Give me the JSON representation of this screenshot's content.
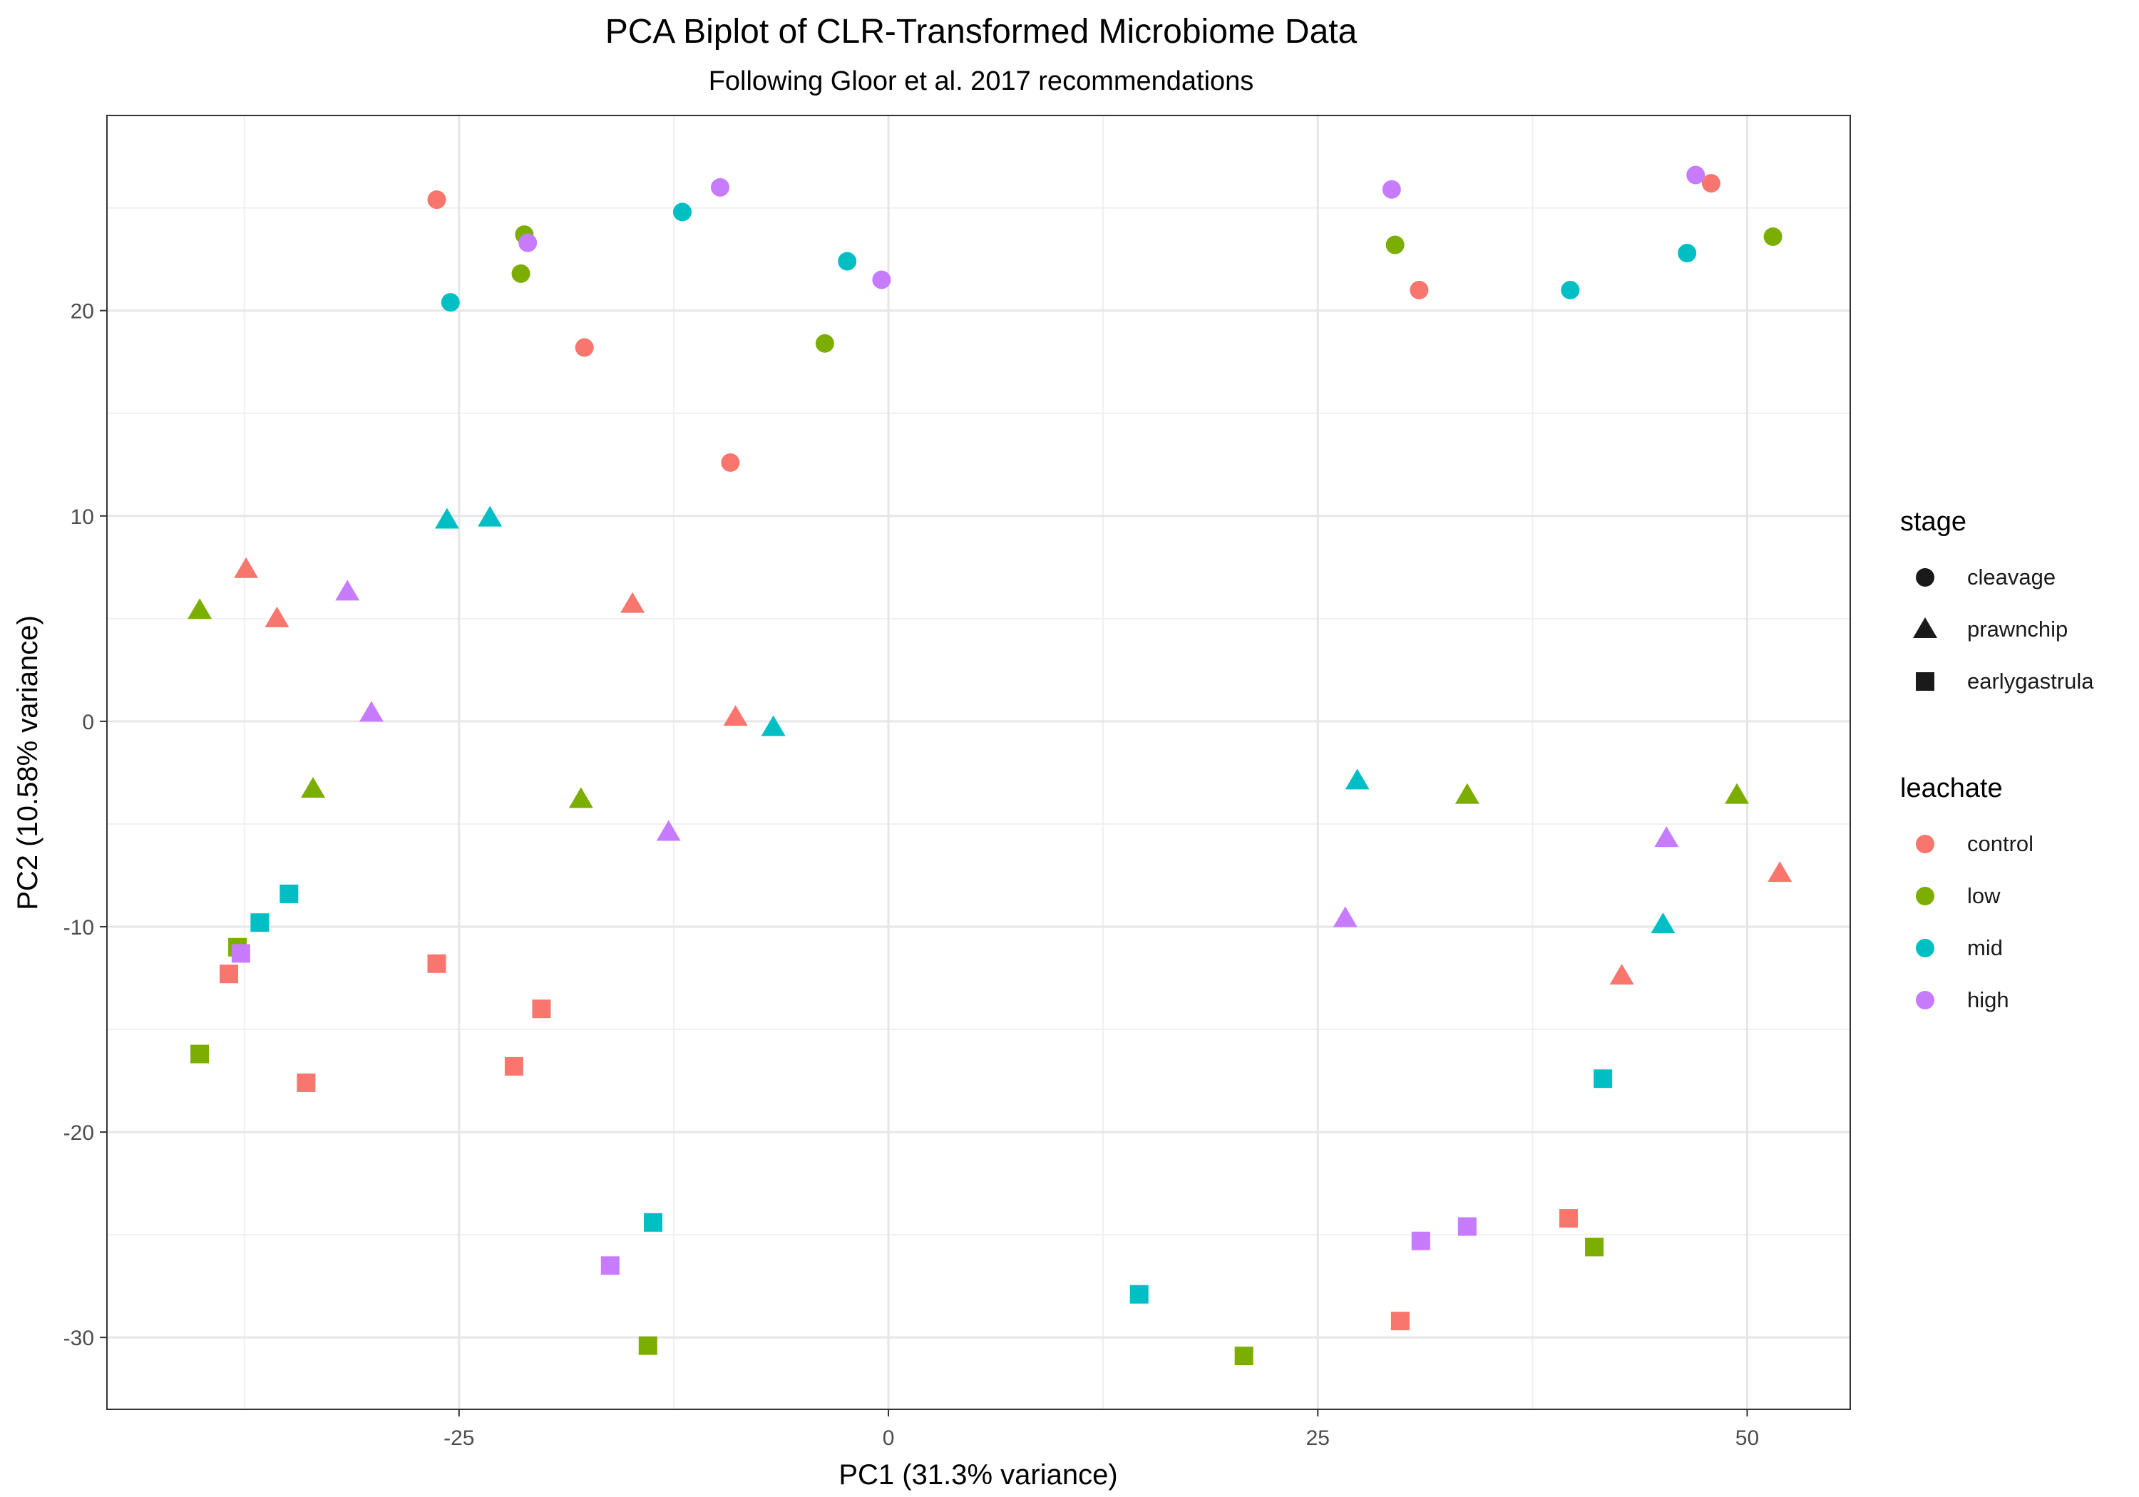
{
  "chart_data": {
    "type": "scatter",
    "title": "PCA Biplot of CLR-Transformed Microbiome Data",
    "subtitle": "Following Gloor et al. 2017 recommendations",
    "xlabel": "PC1 (31.3% variance)",
    "ylabel": "PC2 (10.58% variance)",
    "xlim": [
      -45.5,
      56
    ],
    "ylim": [
      -33.5,
      29.5
    ],
    "x_ticks": [
      -25,
      0,
      25,
      50
    ],
    "y_ticks": [
      -30,
      -20,
      -10,
      0,
      10,
      20
    ],
    "x_tick_labels": [
      "-25",
      "0",
      "25",
      "50"
    ],
    "y_tick_labels": [
      "-30",
      "-20",
      "-10",
      "0",
      "10",
      "20"
    ],
    "grid": true,
    "legend_position": "right",
    "legends": {
      "stage": {
        "title": "stage",
        "items": [
          {
            "label": "cleavage",
            "shape": "circle"
          },
          {
            "label": "prawnchip",
            "shape": "triangle"
          },
          {
            "label": "earlygastrula",
            "shape": "square"
          }
        ]
      },
      "leachate": {
        "title": "leachate",
        "items": [
          {
            "label": "control",
            "color": "#F8766D"
          },
          {
            "label": "low",
            "color": "#7CAE00"
          },
          {
            "label": "mid",
            "color": "#00BFC4"
          },
          {
            "label": "high",
            "color": "#C77CFF"
          }
        ]
      }
    },
    "points": [
      {
        "x": -26.3,
        "y": 25.4,
        "stage": "cleavage",
        "leachate": "control"
      },
      {
        "x": -17.7,
        "y": 18.2,
        "stage": "cleavage",
        "leachate": "control"
      },
      {
        "x": -9.2,
        "y": 12.6,
        "stage": "cleavage",
        "leachate": "control"
      },
      {
        "x": 30.9,
        "y": 21.0,
        "stage": "cleavage",
        "leachate": "control"
      },
      {
        "x": 47.9,
        "y": 26.2,
        "stage": "cleavage",
        "leachate": "control"
      },
      {
        "x": -21.2,
        "y": 23.7,
        "stage": "cleavage",
        "leachate": "low"
      },
      {
        "x": -21.4,
        "y": 21.8,
        "stage": "cleavage",
        "leachate": "low"
      },
      {
        "x": -3.7,
        "y": 18.4,
        "stage": "cleavage",
        "leachate": "low"
      },
      {
        "x": 29.5,
        "y": 23.2,
        "stage": "cleavage",
        "leachate": "low"
      },
      {
        "x": 51.5,
        "y": 23.6,
        "stage": "cleavage",
        "leachate": "low"
      },
      {
        "x": -25.5,
        "y": 20.4,
        "stage": "cleavage",
        "leachate": "mid"
      },
      {
        "x": -12.0,
        "y": 24.8,
        "stage": "cleavage",
        "leachate": "mid"
      },
      {
        "x": -2.4,
        "y": 22.4,
        "stage": "cleavage",
        "leachate": "mid"
      },
      {
        "x": 39.7,
        "y": 21.0,
        "stage": "cleavage",
        "leachate": "mid"
      },
      {
        "x": 46.5,
        "y": 22.8,
        "stage": "cleavage",
        "leachate": "mid"
      },
      {
        "x": -21.0,
        "y": 23.3,
        "stage": "cleavage",
        "leachate": "high"
      },
      {
        "x": -9.8,
        "y": 26.0,
        "stage": "cleavage",
        "leachate": "high"
      },
      {
        "x": -0.4,
        "y": 21.5,
        "stage": "cleavage",
        "leachate": "high"
      },
      {
        "x": 29.3,
        "y": 25.9,
        "stage": "cleavage",
        "leachate": "high"
      },
      {
        "x": 47.0,
        "y": 26.6,
        "stage": "cleavage",
        "leachate": "high"
      },
      {
        "x": -37.4,
        "y": 7.4,
        "stage": "prawnchip",
        "leachate": "control"
      },
      {
        "x": -35.6,
        "y": 5.0,
        "stage": "prawnchip",
        "leachate": "control"
      },
      {
        "x": -14.9,
        "y": 5.7,
        "stage": "prawnchip",
        "leachate": "control"
      },
      {
        "x": -8.9,
        "y": 0.2,
        "stage": "prawnchip",
        "leachate": "control"
      },
      {
        "x": 42.7,
        "y": -12.4,
        "stage": "prawnchip",
        "leachate": "control"
      },
      {
        "x": 51.9,
        "y": -7.4,
        "stage": "prawnchip",
        "leachate": "control"
      },
      {
        "x": -40.1,
        "y": 5.4,
        "stage": "prawnchip",
        "leachate": "low"
      },
      {
        "x": -33.5,
        "y": -3.3,
        "stage": "prawnchip",
        "leachate": "low"
      },
      {
        "x": -17.9,
        "y": -3.8,
        "stage": "prawnchip",
        "leachate": "low"
      },
      {
        "x": 33.7,
        "y": -3.6,
        "stage": "prawnchip",
        "leachate": "low"
      },
      {
        "x": 49.4,
        "y": -3.6,
        "stage": "prawnchip",
        "leachate": "low"
      },
      {
        "x": -25.7,
        "y": 9.8,
        "stage": "prawnchip",
        "leachate": "mid"
      },
      {
        "x": -23.2,
        "y": 9.9,
        "stage": "prawnchip",
        "leachate": "mid"
      },
      {
        "x": -6.7,
        "y": -0.3,
        "stage": "prawnchip",
        "leachate": "mid"
      },
      {
        "x": 27.3,
        "y": -2.9,
        "stage": "prawnchip",
        "leachate": "mid"
      },
      {
        "x": 45.1,
        "y": -9.9,
        "stage": "prawnchip",
        "leachate": "mid"
      },
      {
        "x": -31.5,
        "y": 6.3,
        "stage": "prawnchip",
        "leachate": "high"
      },
      {
        "x": -30.1,
        "y": 0.4,
        "stage": "prawnchip",
        "leachate": "high"
      },
      {
        "x": -12.8,
        "y": -5.4,
        "stage": "prawnchip",
        "leachate": "high"
      },
      {
        "x": 26.6,
        "y": -9.6,
        "stage": "prawnchip",
        "leachate": "high"
      },
      {
        "x": 45.3,
        "y": -5.7,
        "stage": "prawnchip",
        "leachate": "high"
      },
      {
        "x": -38.4,
        "y": -12.3,
        "stage": "earlygastrula",
        "leachate": "control"
      },
      {
        "x": -33.9,
        "y": -17.6,
        "stage": "earlygastrula",
        "leachate": "control"
      },
      {
        "x": -26.3,
        "y": -11.8,
        "stage": "earlygastrula",
        "leachate": "control"
      },
      {
        "x": -21.8,
        "y": -16.8,
        "stage": "earlygastrula",
        "leachate": "control"
      },
      {
        "x": -20.2,
        "y": -14.0,
        "stage": "earlygastrula",
        "leachate": "control"
      },
      {
        "x": 29.8,
        "y": -29.2,
        "stage": "earlygastrula",
        "leachate": "control"
      },
      {
        "x": 39.6,
        "y": -24.2,
        "stage": "earlygastrula",
        "leachate": "control"
      },
      {
        "x": -40.1,
        "y": -16.2,
        "stage": "earlygastrula",
        "leachate": "low"
      },
      {
        "x": -37.9,
        "y": -11.0,
        "stage": "earlygastrula",
        "leachate": "low"
      },
      {
        "x": -14.0,
        "y": -30.4,
        "stage": "earlygastrula",
        "leachate": "low"
      },
      {
        "x": 20.7,
        "y": -30.9,
        "stage": "earlygastrula",
        "leachate": "low"
      },
      {
        "x": 41.1,
        "y": -25.6,
        "stage": "earlygastrula",
        "leachate": "low"
      },
      {
        "x": -36.6,
        "y": -9.8,
        "stage": "earlygastrula",
        "leachate": "mid"
      },
      {
        "x": -34.9,
        "y": -8.4,
        "stage": "earlygastrula",
        "leachate": "mid"
      },
      {
        "x": -13.7,
        "y": -24.4,
        "stage": "earlygastrula",
        "leachate": "mid"
      },
      {
        "x": 14.6,
        "y": -27.9,
        "stage": "earlygastrula",
        "leachate": "mid"
      },
      {
        "x": 41.6,
        "y": -17.4,
        "stage": "earlygastrula",
        "leachate": "mid"
      },
      {
        "x": -37.7,
        "y": -11.3,
        "stage": "earlygastrula",
        "leachate": "high"
      },
      {
        "x": -16.2,
        "y": -26.5,
        "stage": "earlygastrula",
        "leachate": "high"
      },
      {
        "x": 31.0,
        "y": -25.3,
        "stage": "earlygastrula",
        "leachate": "high"
      },
      {
        "x": 33.7,
        "y": -24.6,
        "stage": "earlygastrula",
        "leachate": "high"
      }
    ]
  }
}
